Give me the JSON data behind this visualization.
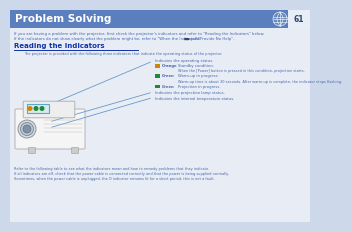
{
  "title": "Problem Solving",
  "page_number": "61",
  "title_bg_color": "#5b7fbe",
  "title_text_color": "#ffffff",
  "page_bg_color": "#cdd8eb",
  "body_text_color": "#4466aa",
  "heading_text_color": "#1133aa",
  "intro_text_line1": "If you are having a problem with the projector, first check the projector's indicators and refer to \"Reading the Indicators\" below.",
  "intro_text_line2": "If the indicators do not show clearly what the problem might be, refer to \"When the Indicators Provide No Help\".",
  "ref_text": " p.64",
  "section_title": "Reading the Indicators",
  "section_desc": "The projector is provided with the following three indicators that indicate the operating status of the projector.",
  "indicator_header": "Indicates the operating status.",
  "indicators": [
    {
      "color": "#cc8800",
      "label": "Orange",
      "desc": "Standby condition."
    },
    {
      "color": null,
      "label": "",
      "desc": "When the [Power] button is pressed in this condition, projection starts."
    },
    {
      "color": "#228833",
      "label": "Green",
      "desc": "Warm-up in progress."
    },
    {
      "color": null,
      "label": "",
      "desc": "Warm-up time is about 30 seconds. After warm-up is complete, the indicator stops flashing."
    },
    {
      "color": "#228833",
      "label": "Green",
      "desc": "Projection in progress."
    }
  ],
  "lamp_text": "Indicates the projection lamp status.",
  "temp_text": "Indicates the internal temperature status.",
  "footer_lines": [
    "Refer to the following table to see what the indicators mean and how to remedy problems that they indicate.",
    "If all indicators are off, check that the power cable is connected correctly and that the power is being supplied normally.",
    "Sometimes, when the power cable is unplugged, the O indicator remains lit for a short period, this is not a fault."
  ],
  "icon_bg_color": "#6688bb",
  "arrow_color": "#6699cc",
  "line_color": "#3355aa"
}
